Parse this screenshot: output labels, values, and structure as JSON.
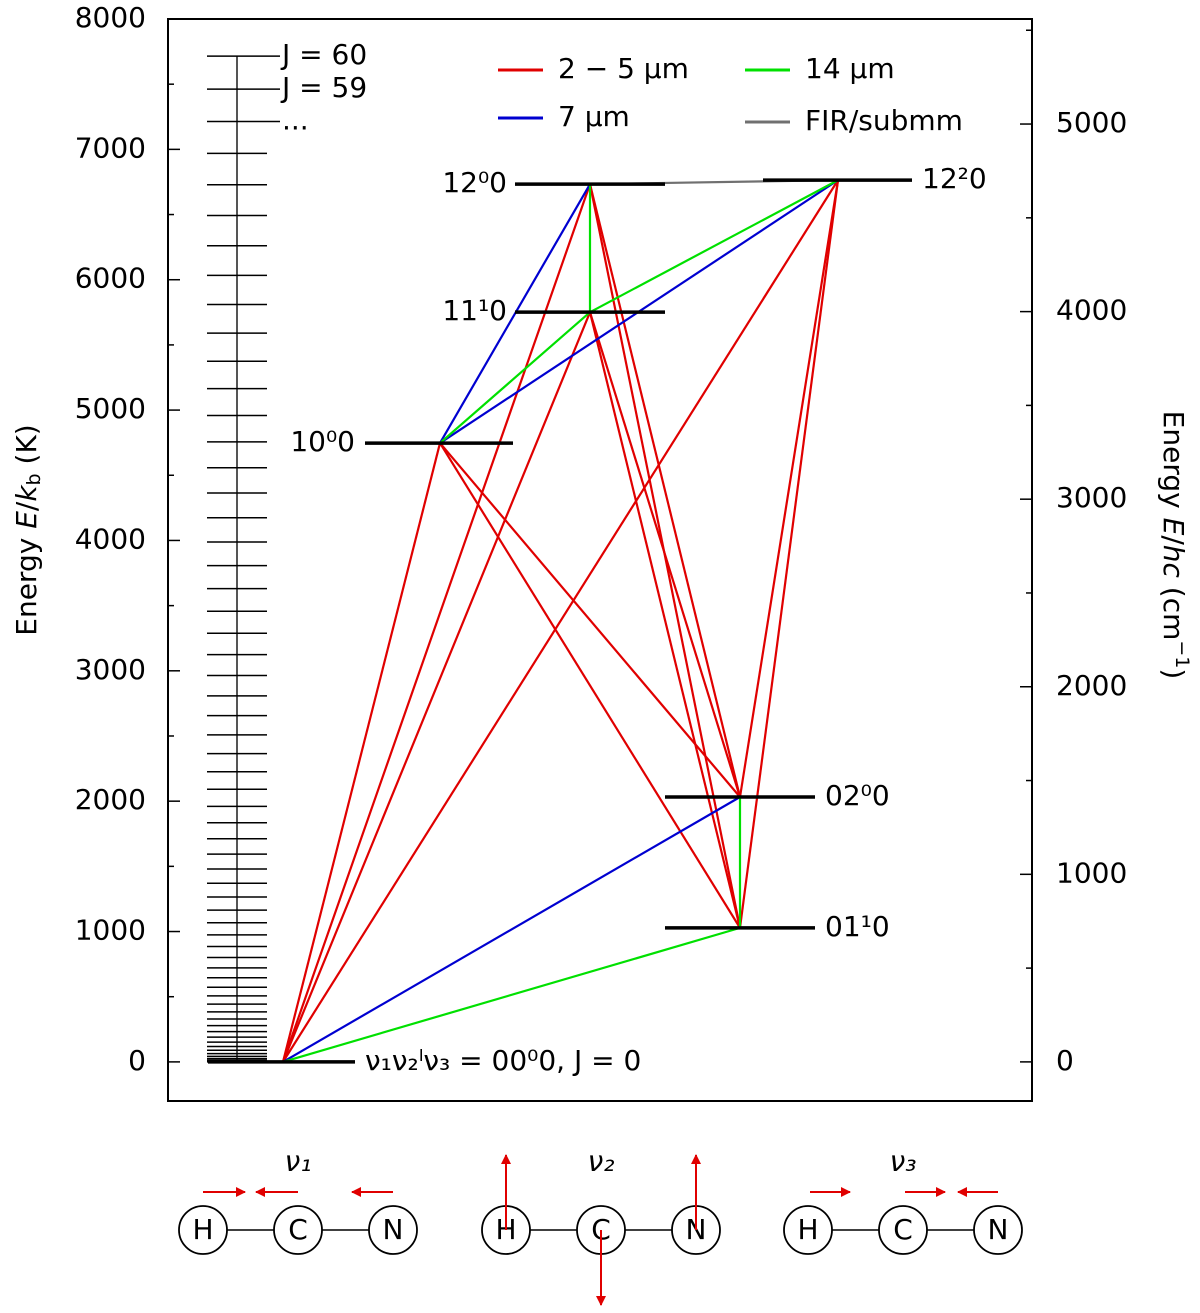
{
  "chart_data": {
    "type": "energy-level",
    "ylabel": [
      "Energy ",
      "E",
      "/",
      "k",
      "b",
      " (K)"
    ],
    "y2label": [
      "Energy ",
      "E",
      "/",
      "hc",
      " (cm",
      "−1",
      ")"
    ],
    "ylim": [
      -300,
      8000
    ],
    "yticks": [
      0,
      1000,
      2000,
      3000,
      4000,
      5000,
      6000,
      7000,
      8000
    ],
    "yminorticks": [
      500,
      1500,
      2500,
      3500,
      4500,
      5500,
      6500,
      7500
    ],
    "y2lim": [
      -208.5,
      5560
    ],
    "y2ticks": [
      0,
      1000,
      2000,
      3000,
      4000,
      5000
    ],
    "y2minorticks": [
      500,
      1500,
      2500,
      3500,
      4500,
      5500
    ],
    "series": [
      {
        "name": "2 − 5 μm",
        "color": "#e00000"
      },
      {
        "name": "7 μm",
        "color": "#0000d0"
      },
      {
        "name": "14 μm",
        "color": "#00e000"
      },
      {
        "name": "FIR/submm",
        "color": "#707070"
      }
    ],
    "levels": [
      {
        "label": "ν₁ν₂ˡν₃ = 00⁰0, J = 0",
        "energy": 0
      },
      {
        "label": "01¹0",
        "energy": 1028
      },
      {
        "label": "02⁰0",
        "energy": 2032
      },
      {
        "label": "10⁰0",
        "energy": 4747
      },
      {
        "label": "11¹0",
        "energy": 5751
      },
      {
        "label": "12⁰0",
        "energy": 6733
      },
      {
        "label": "12²0",
        "energy": 6764
      }
    ],
    "transitions": [
      {
        "from": 0,
        "to": 3,
        "band": 0
      },
      {
        "from": 0,
        "to": 4,
        "band": 0
      },
      {
        "from": 0,
        "to": 5,
        "band": 0
      },
      {
        "from": 0,
        "to": 6,
        "band": 0
      },
      {
        "from": 3,
        "to": 2,
        "band": 0
      },
      {
        "from": 3,
        "to": 1,
        "band": 0
      },
      {
        "from": 4,
        "to": 2,
        "band": 0
      },
      {
        "from": 4,
        "to": 1,
        "band": 0
      },
      {
        "from": 5,
        "to": 2,
        "band": 0
      },
      {
        "from": 5,
        "to": 1,
        "band": 0
      },
      {
        "from": 6,
        "to": 2,
        "band": 0
      },
      {
        "from": 6,
        "to": 1,
        "band": 0
      },
      {
        "from": 3,
        "to": 5,
        "band": 1
      },
      {
        "from": 3,
        "to": 6,
        "band": 1
      },
      {
        "from": 0,
        "to": 2,
        "band": 1
      },
      {
        "from": 3,
        "to": 4,
        "band": 2
      },
      {
        "from": 4,
        "to": 6,
        "band": 2
      },
      {
        "from": 4,
        "to": 5,
        "band": 2
      },
      {
        "from": 1,
        "to": 2,
        "band": 2
      },
      {
        "from": 0,
        "to": 1,
        "band": 2
      },
      {
        "from": 5,
        "to": 6,
        "band": 3
      }
    ],
    "rotational": {
      "energies": [
        0,
        4,
        13,
        25,
        42,
        63,
        89,
        118,
        152,
        190,
        232,
        278,
        329,
        384,
        443,
        506,
        573,
        645,
        721,
        801,
        885,
        974,
        1067,
        1164,
        1265,
        1370,
        1480,
        1594,
        1712,
        1834,
        1960,
        2091,
        2226,
        2365,
        2509,
        2656,
        2808,
        2964,
        3124,
        3288,
        3457,
        3630,
        3807,
        3988,
        4174,
        4364,
        4558,
        4756,
        4958,
        5165,
        5375,
        5590,
        5810,
        6033,
        6261,
        6493,
        6729,
        6969,
        7214,
        7462,
        7715
      ],
      "labels": [
        "J = 60",
        "J = 59",
        "..."
      ]
    },
    "modes": [
      {
        "name": "ν₁",
        "atoms": [
          "H",
          "C",
          "N"
        ]
      },
      {
        "name": "ν₂",
        "atoms": [
          "H",
          "C",
          "N"
        ]
      },
      {
        "name": "ν₃",
        "atoms": [
          "H",
          "C",
          "N"
        ]
      }
    ]
  }
}
